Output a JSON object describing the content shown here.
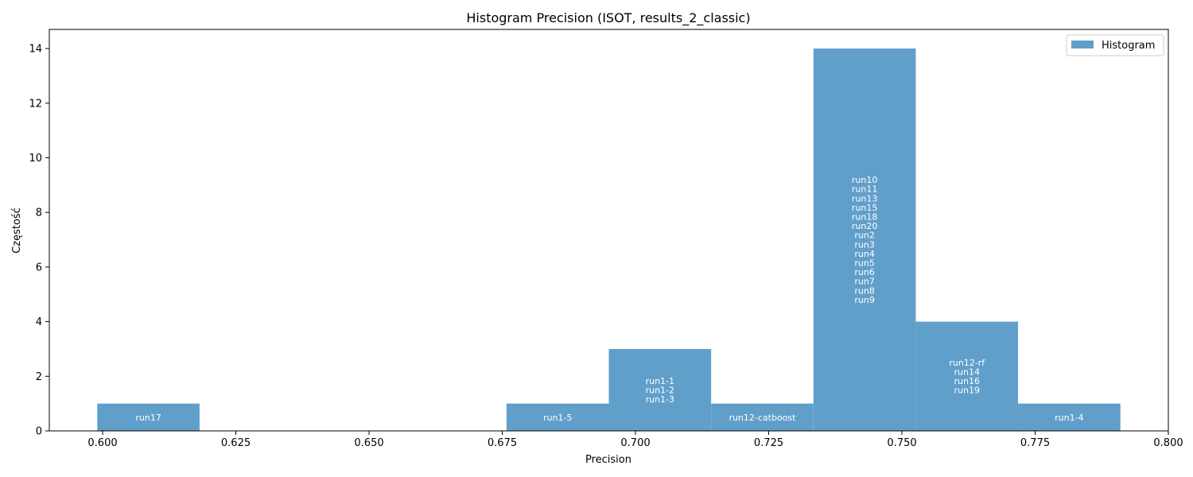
{
  "chart_data": {
    "type": "bar",
    "title": "Histogram Precision (ISOT, results_2_classic)",
    "xlabel": "Precision",
    "ylabel": "Częstość",
    "xlim": [
      0.59,
      0.8
    ],
    "ylim": [
      0,
      14.7
    ],
    "xticks": [
      "0.600",
      "0.625",
      "0.650",
      "0.675",
      "0.700",
      "0.725",
      "0.750",
      "0.775",
      "0.800"
    ],
    "yticks": [
      "0",
      "2",
      "4",
      "6",
      "8",
      "10",
      "12",
      "14"
    ],
    "grid": false,
    "legend": {
      "position": "top-right",
      "entries": [
        "Histogram"
      ]
    },
    "bar_color": "#619fcb",
    "bins": [
      {
        "x0": 0.599,
        "x1": 0.6182,
        "count": 1,
        "labels": [
          "run17"
        ]
      },
      {
        "x0": 0.6182,
        "x1": 0.6374,
        "count": 0,
        "labels": []
      },
      {
        "x0": 0.6374,
        "x1": 0.6566,
        "count": 0,
        "labels": []
      },
      {
        "x0": 0.6566,
        "x1": 0.6758,
        "count": 0,
        "labels": []
      },
      {
        "x0": 0.6758,
        "x1": 0.695,
        "count": 1,
        "labels": [
          "run1-5"
        ]
      },
      {
        "x0": 0.695,
        "x1": 0.7142,
        "count": 3,
        "labels": [
          "run1-1",
          "run1-2",
          "run1-3"
        ]
      },
      {
        "x0": 0.7142,
        "x1": 0.7334,
        "count": 1,
        "labels": [
          "run12-catboost"
        ]
      },
      {
        "x0": 0.7334,
        "x1": 0.7526,
        "count": 14,
        "labels": [
          "run10",
          "run11",
          "run13",
          "run15",
          "run18",
          "run20",
          "run2",
          "run3",
          "run4",
          "run5",
          "run6",
          "run7",
          "run8",
          "run9"
        ]
      },
      {
        "x0": 0.7526,
        "x1": 0.7718,
        "count": 4,
        "labels": [
          "run12-rf",
          "run14",
          "run16",
          "run19"
        ]
      },
      {
        "x0": 0.7718,
        "x1": 0.791,
        "count": 1,
        "labels": [
          "run1-4"
        ]
      }
    ]
  }
}
